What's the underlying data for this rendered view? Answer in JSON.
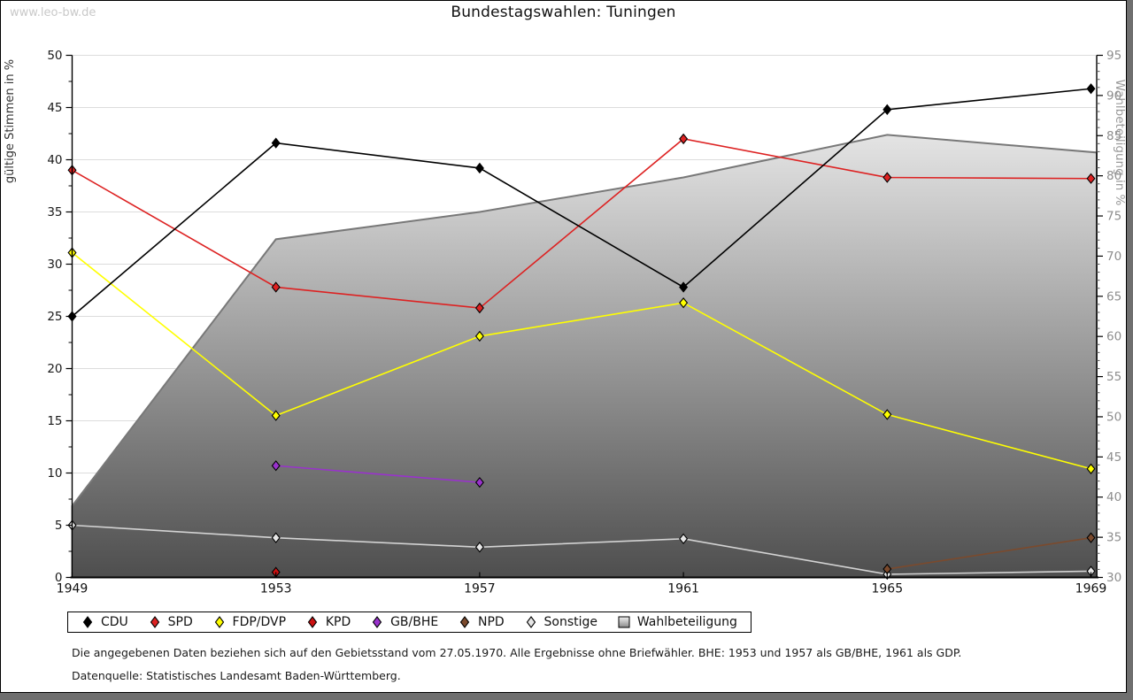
{
  "watermark": "www.leo-bw.de",
  "title": "Bundestagswahlen: Tuningen",
  "footnotes": {
    "line1": "Die angegebenen Daten beziehen sich auf den Gebietsstand vom 27.05.1970. Alle Ergebnisse ohne Briefwähler. BHE: 1953 und 1957 als GB/BHE, 1961 als GDP.",
    "line2": "Datenquelle: Statistisches Landesamt Baden-Württemberg."
  },
  "axes": {
    "left_label": "gültige Stimmen in %",
    "right_label": "Wahlbeteiligung in %",
    "left_range": [
      0,
      50
    ],
    "left_tick_step": 5,
    "right_range": [
      30,
      95
    ],
    "right_tick_step": 5,
    "grid_color": "#dcdcdc",
    "left_text_color": "#1a1a1a",
    "right_text_color": "#8d8d8d"
  },
  "chart_data": {
    "type": "line",
    "title": "Bundestagswahlen: Tuningen",
    "x": [
      1949,
      1953,
      1957,
      1961,
      1965,
      1969
    ],
    "xlabel": "",
    "ylabel_left": "gültige Stimmen in %",
    "ylabel_right": "Wahlbeteiligung in %",
    "ylim_left": [
      0,
      50
    ],
    "ylim_right": [
      30,
      95
    ],
    "grid": true,
    "legend_position": "bottom",
    "series": [
      {
        "name": "CDU",
        "color": "#000000",
        "marker_fill": "#000000",
        "values": [
          25.0,
          41.6,
          39.2,
          27.8,
          44.8,
          46.8
        ]
      },
      {
        "name": "SPD",
        "color": "#dd2222",
        "marker_fill": "#dd2222",
        "values": [
          39.0,
          27.8,
          25.8,
          42.0,
          38.3,
          38.2
        ]
      },
      {
        "name": "FDP/DVP",
        "color": "#ffff00",
        "marker_fill": "#ffff00",
        "values": [
          31.1,
          15.5,
          23.1,
          26.3,
          15.6,
          10.4
        ]
      },
      {
        "name": "KPD",
        "color": "#aa0000",
        "marker_fill": "#cc1111",
        "values": [
          null,
          0.5,
          null,
          null,
          null,
          null
        ]
      },
      {
        "name": "GB/BHE",
        "color": "#9932cc",
        "marker_fill": "#9932cc",
        "values": [
          null,
          10.7,
          9.1,
          null,
          null,
          null
        ]
      },
      {
        "name": "NPD",
        "color": "#7b4a2d",
        "marker_fill": "#7b4a2d",
        "values": [
          null,
          null,
          null,
          null,
          0.8,
          3.8
        ]
      },
      {
        "name": "Sonstige",
        "color": "#d3d3d3",
        "marker_fill": "#e6e6e6",
        "values": [
          5.0,
          3.8,
          2.9,
          3.7,
          0.3,
          0.6
        ]
      }
    ],
    "turnout_area": {
      "name": "Wahlbeteiligung",
      "axis": "right",
      "values": [
        38.9,
        72.1,
        75.5,
        79.8,
        85.1,
        82.9
      ],
      "outline_color": "#787878",
      "fill_top": "#ffffff",
      "fill_bottom": "#4e4e4e"
    }
  },
  "legend": {
    "items": [
      {
        "label": "CDU",
        "shape": "diamond",
        "color": "#000000"
      },
      {
        "label": "SPD",
        "shape": "diamond",
        "color": "#dd2222"
      },
      {
        "label": "FDP/DVP",
        "shape": "diamond",
        "color": "#ffff00"
      },
      {
        "label": "KPD",
        "shape": "diamond",
        "color": "#cc1111"
      },
      {
        "label": "GB/BHE",
        "shape": "diamond",
        "color": "#9932cc"
      },
      {
        "label": "NPD",
        "shape": "diamond",
        "color": "#7b4a2d"
      },
      {
        "label": "Sonstige",
        "shape": "diamond",
        "color": "#e6e6e6"
      },
      {
        "label": "Wahlbeteiligung",
        "shape": "square",
        "color": "#b0b0b0"
      }
    ]
  }
}
